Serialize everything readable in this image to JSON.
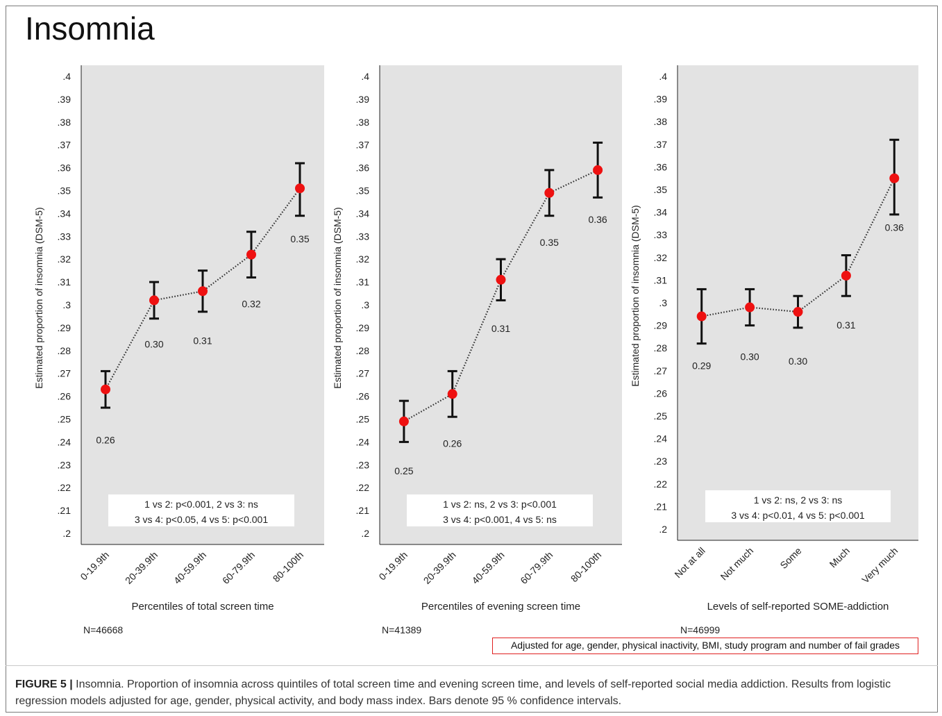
{
  "figure_title": "Insomnia",
  "note": "Adjusted for age, gender, physical inactivity, BMI, study program and number of fail grades",
  "caption": {
    "label": "FIGURE 5 |",
    "text": "Insomnia. Proportion of insomnia across quintiles of total screen time and evening screen time, and levels of self-reported social media addiction. Results from logistic regression models adjusted for age, gender, physical activity, and body mass index. Bars denote 95 % confidence intervals."
  },
  "colors": {
    "panel_bg": "#e3e3e3",
    "point": "#ee1111",
    "error_bar": "#111111",
    "connector": "#333333"
  },
  "chart_data": [
    {
      "type": "scatter",
      "ylabel": "Estimated proportion of insomnia (DSM-5)",
      "xlabel": "Percentiles of total screen time",
      "categories": [
        "0-19.9th",
        "20-39.9th",
        "40-59.9th",
        "60-79.9th",
        "80-100th"
      ],
      "values": [
        0.263,
        0.302,
        0.306,
        0.322,
        0.351
      ],
      "lower": [
        0.255,
        0.294,
        0.297,
        0.312,
        0.339
      ],
      "upper": [
        0.271,
        0.31,
        0.315,
        0.332,
        0.362
      ],
      "value_labels": [
        "0.26",
        "0.30",
        "0.31",
        "0.32",
        "0.35"
      ],
      "yticks": [
        ".4",
        ".39",
        ".38",
        ".37",
        ".36",
        ".35",
        ".34",
        ".33",
        ".32",
        ".31",
        ".3",
        ".29",
        ".28",
        ".27",
        ".26",
        ".25",
        ".24",
        ".23",
        ".22",
        ".21",
        ".2"
      ],
      "ylim": [
        0.2,
        0.4
      ],
      "grid": false,
      "annotation": [
        "1 vs 2: p<0.001, 2 vs 3: ns",
        "3 vs 4: p<0.05, 4 vs 5: p<0.001"
      ],
      "n_label": "N=46668"
    },
    {
      "type": "scatter",
      "ylabel": "Estimated proportion of insomnia (DSM-5)",
      "xlabel": "Percentiles of evening screen time",
      "categories": [
        "0-19.9th",
        "20-39.9th",
        "40-59.9th",
        "60-79.9th",
        "80-100th"
      ],
      "values": [
        0.249,
        0.261,
        0.311,
        0.349,
        0.359
      ],
      "lower": [
        0.24,
        0.251,
        0.302,
        0.339,
        0.347
      ],
      "upper": [
        0.258,
        0.271,
        0.32,
        0.359,
        0.371
      ],
      "value_labels": [
        "0.25",
        "0.26",
        "0.31",
        "0.35",
        "0.36"
      ],
      "yticks": [
        ".4",
        ".39",
        ".38",
        ".37",
        ".36",
        ".35",
        ".34",
        ".33",
        ".32",
        ".31",
        ".3",
        ".29",
        ".28",
        ".27",
        ".26",
        ".25",
        ".24",
        ".23",
        ".22",
        ".21",
        ".2"
      ],
      "ylim": [
        0.2,
        0.4
      ],
      "grid": false,
      "annotation": [
        "1 vs 2: ns, 2 vs 3: p<0.001",
        "3 vs 4: p<0.001, 4 vs 5: ns"
      ],
      "n_label": "N=41389"
    },
    {
      "type": "scatter",
      "ylabel": "Estimated proportion of insomnia (DSM-5)",
      "xlabel": "Levels of self-reported SOME-addiction",
      "categories": [
        "Not at all",
        "Not much",
        "Some",
        "Much",
        "Very much"
      ],
      "values": [
        0.294,
        0.298,
        0.296,
        0.312,
        0.355
      ],
      "lower": [
        0.282,
        0.29,
        0.289,
        0.303,
        0.339
      ],
      "upper": [
        0.306,
        0.306,
        0.303,
        0.321,
        0.372
      ],
      "value_labels": [
        "0.29",
        "0.30",
        "0.30",
        "0.31",
        "0.36"
      ],
      "yticks": [
        ".4",
        ".39",
        ".38",
        ".37",
        ".36",
        ".35",
        ".34",
        ".33",
        ".32",
        ".31",
        ".3",
        ".29",
        ".28",
        ".27",
        ".26",
        ".25",
        ".24",
        ".23",
        ".22",
        ".21",
        ".2"
      ],
      "ylim": [
        0.2,
        0.4
      ],
      "grid": false,
      "annotation": [
        "1 vs 2: ns, 2 vs 3: ns",
        "3 vs 4: p<0.01, 4 vs 5: p<0.001"
      ],
      "n_label": "N=46999"
    }
  ]
}
